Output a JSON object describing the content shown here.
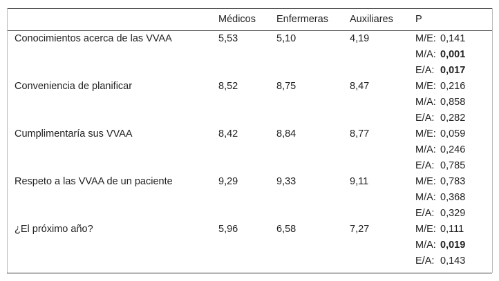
{
  "table": {
    "header": [
      "Médicos",
      "Enfermeras",
      "Auxiliares",
      "P"
    ],
    "rows": [
      {
        "label": "Conocimientos acerca de las VVAA",
        "values": [
          "5,53",
          "5,10",
          "4,19"
        ],
        "p": [
          {
            "label": "M/E:",
            "value": "0,141",
            "bold": false
          },
          {
            "label": "M/A:",
            "value": "0,001",
            "bold": true
          },
          {
            "label": "E/A:",
            "value": "0,017",
            "bold": true
          }
        ]
      },
      {
        "label": "Conveniencia de planificar",
        "values": [
          "8,52",
          "8,75",
          "8,47"
        ],
        "p": [
          {
            "label": "M/E:",
            "value": "0,216",
            "bold": false
          },
          {
            "label": "M/A:",
            "value": "0,858",
            "bold": false
          },
          {
            "label": "E/A:",
            "value": "0,282",
            "bold": false
          }
        ]
      },
      {
        "label": "Cumplimentaría sus VVAA",
        "values": [
          "8,42",
          "8,84",
          "8,77"
        ],
        "p": [
          {
            "label": "M/E:",
            "value": "0,059",
            "bold": false
          },
          {
            "label": "M/A:",
            "value": "0,246",
            "bold": false
          },
          {
            "label": "E/A:",
            "value": "0,785",
            "bold": false
          }
        ]
      },
      {
        "label": "Respeto a las VVAA de un paciente",
        "values": [
          "9,29",
          "9,33",
          "9,11"
        ],
        "p": [
          {
            "label": "M/E:",
            "value": "0,783",
            "bold": false
          },
          {
            "label": "M/A:",
            "value": "0,368",
            "bold": false
          },
          {
            "label": "E/A:",
            "value": "0,329",
            "bold": false
          }
        ]
      },
      {
        "label": "¿El próximo año?",
        "values": [
          "5,96",
          "6,58",
          "7,27"
        ],
        "p": [
          {
            "label": "M/E:",
            "value": "0,111",
            "bold": false
          },
          {
            "label": "M/A:",
            "value": "0,019",
            "bold": true
          },
          {
            "label": "E/A:",
            "value": "0,143",
            "bold": false
          }
        ]
      }
    ]
  }
}
